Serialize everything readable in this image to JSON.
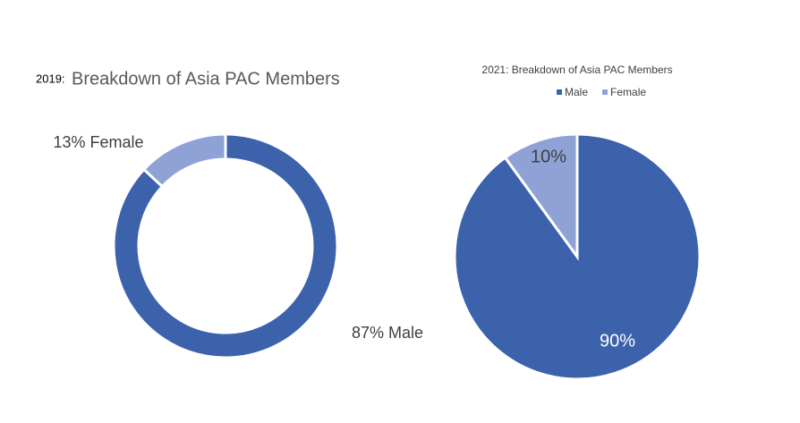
{
  "chart_data": [
    {
      "type": "donut",
      "title_prefix": "2019:",
      "title": "Breakdown of Asia PAC Members",
      "categories": [
        "Male",
        "Female"
      ],
      "values": [
        87,
        13
      ],
      "value_labels": [
        "87% Male",
        "13% Female"
      ],
      "colors": [
        "#3c62ab",
        "#8fa2d6"
      ]
    },
    {
      "type": "pie",
      "title": "2021: Breakdown of Asia PAC Members",
      "categories": [
        "Male",
        "Female"
      ],
      "values": [
        90,
        10
      ],
      "value_labels": [
        "90%",
        "10%"
      ],
      "colors": [
        "#3c62ab",
        "#8fa2d6"
      ],
      "legend": "top"
    }
  ]
}
